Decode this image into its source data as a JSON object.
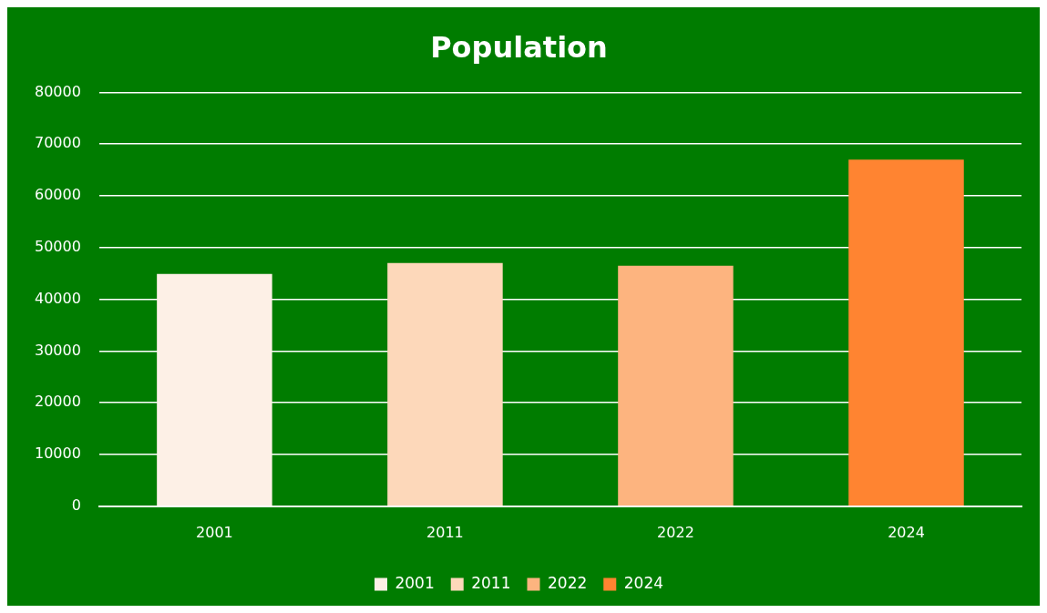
{
  "chart_data": {
    "type": "bar",
    "title": "Population",
    "categories": [
      "2001",
      "2011",
      "2022",
      "2024"
    ],
    "series": [
      {
        "name": "2001",
        "color": "#fdf0e6",
        "values": [
          44900,
          null,
          null,
          null
        ]
      },
      {
        "name": "2011",
        "color": "#fdd8ba",
        "values": [
          null,
          47000,
          null,
          null
        ]
      },
      {
        "name": "2022",
        "color": "#fdb47f",
        "values": [
          null,
          null,
          46500,
          null
        ]
      },
      {
        "name": "2024",
        "color": "#ff8431",
        "values": [
          null,
          null,
          null,
          67000
        ]
      }
    ],
    "ylim": [
      0,
      80000
    ],
    "yticks": [
      0,
      10000,
      20000,
      30000,
      40000,
      50000,
      60000,
      70000,
      80000
    ],
    "grid": "y",
    "legend": "bottom"
  }
}
